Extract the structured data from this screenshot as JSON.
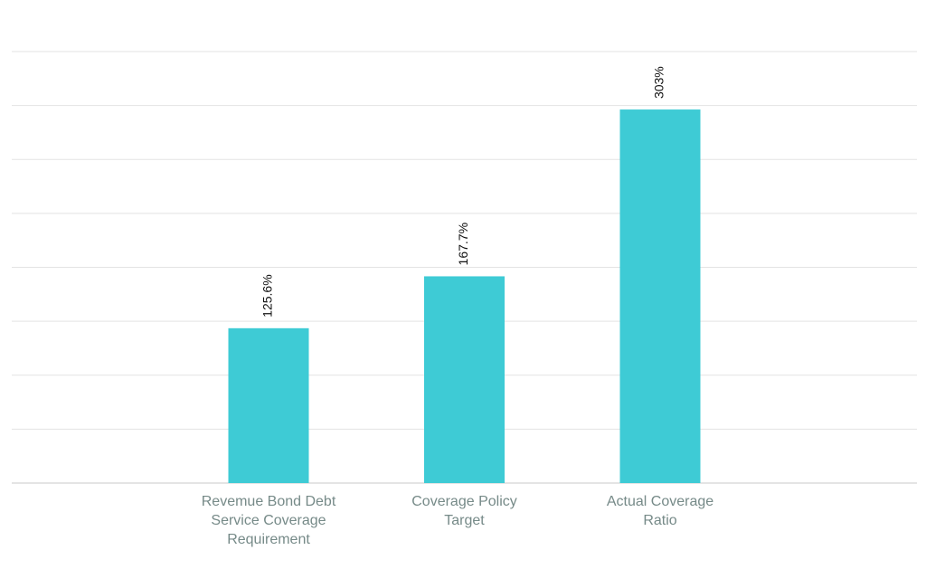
{
  "chart_data": {
    "type": "bar",
    "categories": [
      [
        "Revemue Bond Debt",
        "Service Coverage",
        "Requirement"
      ],
      [
        "Coverage Policy",
        "Target"
      ],
      [
        "Actual Coverage",
        "Ratio"
      ]
    ],
    "values": [
      125.6,
      167.7,
      303
    ],
    "value_labels": [
      "125.6%",
      "167.7%",
      "303%"
    ],
    "color": "#3ecbd5",
    "ylim": [
      0,
      350
    ],
    "yticks": [
      0,
      43.75,
      87.5,
      131.25,
      175,
      218.75,
      262.5,
      306.25,
      350
    ],
    "grid": true
  }
}
